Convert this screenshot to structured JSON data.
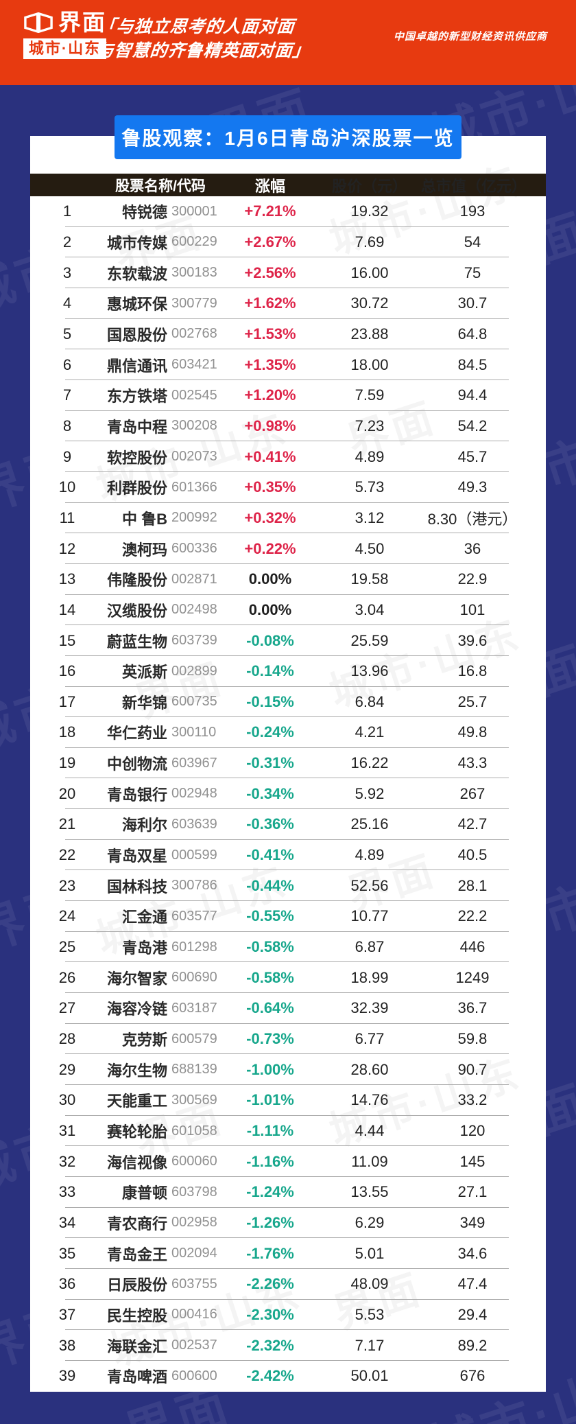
{
  "banner": {
    "logo_main": "界面",
    "logo_sub": "城市·山东",
    "slogan_line1": "「与独立思考的人面对面",
    "slogan_line2": "与智慧的齐鲁精英面对面」",
    "tagline": "中国卓越的新型财经资讯供应商",
    "bg_color": "#E73A10"
  },
  "title_badge": {
    "text": "鲁股观察：1月6日青岛沪深股票一览",
    "bg_color": "#1478F0"
  },
  "watermark": {
    "text_a": "界面",
    "text_b": "城市·山东"
  },
  "colors": {
    "page_bg": "#2A317E",
    "card_bg": "#FFFFFF",
    "table_header_bg": "#251C11",
    "positive": "#DE2449",
    "negative": "#17A78C",
    "zero": "#1E1E1E"
  },
  "chart_data": {
    "type": "table",
    "title": "鲁股观察：1月6日青岛沪深股票一览",
    "columns": [
      "股票名称/代码",
      "涨幅",
      "股价（元）",
      "总市值（亿元）"
    ],
    "rows": [
      {
        "rank": 1,
        "name": "特锐德",
        "code": "300001",
        "change": "+7.21%",
        "price": "19.32",
        "market_cap": "193"
      },
      {
        "rank": 2,
        "name": "城市传媒",
        "code": "600229",
        "change": "+2.67%",
        "price": "7.69",
        "market_cap": "54"
      },
      {
        "rank": 3,
        "name": "东软载波",
        "code": "300183",
        "change": "+2.56%",
        "price": "16.00",
        "market_cap": "75"
      },
      {
        "rank": 4,
        "name": "惠城环保",
        "code": "300779",
        "change": "+1.62%",
        "price": "30.72",
        "market_cap": "30.7"
      },
      {
        "rank": 5,
        "name": "国恩股份",
        "code": "002768",
        "change": "+1.53%",
        "price": "23.88",
        "market_cap": "64.8"
      },
      {
        "rank": 6,
        "name": "鼎信通讯",
        "code": "603421",
        "change": "+1.35%",
        "price": "18.00",
        "market_cap": "84.5"
      },
      {
        "rank": 7,
        "name": "东方铁塔",
        "code": "002545",
        "change": "+1.20%",
        "price": "7.59",
        "market_cap": "94.4"
      },
      {
        "rank": 8,
        "name": "青岛中程",
        "code": "300208",
        "change": "+0.98%",
        "price": "7.23",
        "market_cap": "54.2"
      },
      {
        "rank": 9,
        "name": "软控股份",
        "code": "002073",
        "change": "+0.41%",
        "price": "4.89",
        "market_cap": "45.7"
      },
      {
        "rank": 10,
        "name": "利群股份",
        "code": "601366",
        "change": "+0.35%",
        "price": "5.73",
        "market_cap": "49.3"
      },
      {
        "rank": 11,
        "name": "中 鲁B",
        "code": "200992",
        "change": "+0.32%",
        "price": "3.12",
        "market_cap": "8.30（港元）"
      },
      {
        "rank": 12,
        "name": "澳柯玛",
        "code": "600336",
        "change": "+0.22%",
        "price": "4.50",
        "market_cap": "36"
      },
      {
        "rank": 13,
        "name": "伟隆股份",
        "code": "002871",
        "change": "0.00%",
        "price": "19.58",
        "market_cap": "22.9"
      },
      {
        "rank": 14,
        "name": "汉缆股份",
        "code": "002498",
        "change": "0.00%",
        "price": "3.04",
        "market_cap": "101"
      },
      {
        "rank": 15,
        "name": "蔚蓝生物",
        "code": "603739",
        "change": "-0.08%",
        "price": "25.59",
        "market_cap": "39.6"
      },
      {
        "rank": 16,
        "name": "英派斯",
        "code": "002899",
        "change": "-0.14%",
        "price": "13.96",
        "market_cap": "16.8"
      },
      {
        "rank": 17,
        "name": "新华锦",
        "code": "600735",
        "change": "-0.15%",
        "price": "6.84",
        "market_cap": "25.7"
      },
      {
        "rank": 18,
        "name": "华仁药业",
        "code": "300110",
        "change": "-0.24%",
        "price": "4.21",
        "market_cap": "49.8"
      },
      {
        "rank": 19,
        "name": "中创物流",
        "code": "603967",
        "change": "-0.31%",
        "price": "16.22",
        "market_cap": "43.3"
      },
      {
        "rank": 20,
        "name": "青岛银行",
        "code": "002948",
        "change": "-0.34%",
        "price": "5.92",
        "market_cap": "267"
      },
      {
        "rank": 21,
        "name": "海利尔",
        "code": "603639",
        "change": "-0.36%",
        "price": "25.16",
        "market_cap": "42.7"
      },
      {
        "rank": 22,
        "name": "青岛双星",
        "code": "000599",
        "change": "-0.41%",
        "price": "4.89",
        "market_cap": "40.5"
      },
      {
        "rank": 23,
        "name": "国林科技",
        "code": "300786",
        "change": "-0.44%",
        "price": "52.56",
        "market_cap": "28.1"
      },
      {
        "rank": 24,
        "name": "汇金通",
        "code": "603577",
        "change": "-0.55%",
        "price": "10.77",
        "market_cap": "22.2"
      },
      {
        "rank": 25,
        "name": "青岛港",
        "code": "601298",
        "change": "-0.58%",
        "price": "6.87",
        "market_cap": "446"
      },
      {
        "rank": 26,
        "name": "海尔智家",
        "code": "600690",
        "change": "-0.58%",
        "price": "18.99",
        "market_cap": "1249"
      },
      {
        "rank": 27,
        "name": "海容冷链",
        "code": "603187",
        "change": "-0.64%",
        "price": "32.39",
        "market_cap": "36.7"
      },
      {
        "rank": 28,
        "name": "克劳斯",
        "code": "600579",
        "change": "-0.73%",
        "price": "6.77",
        "market_cap": "59.8"
      },
      {
        "rank": 29,
        "name": "海尔生物",
        "code": "688139",
        "change": "-1.00%",
        "price": "28.60",
        "market_cap": "90.7"
      },
      {
        "rank": 30,
        "name": "天能重工",
        "code": "300569",
        "change": "-1.01%",
        "price": "14.76",
        "market_cap": "33.2"
      },
      {
        "rank": 31,
        "name": "赛轮轮胎",
        "code": "601058",
        "change": "-1.11%",
        "price": "4.44",
        "market_cap": "120"
      },
      {
        "rank": 32,
        "name": "海信视像",
        "code": "600060",
        "change": "-1.16%",
        "price": "11.09",
        "market_cap": "145"
      },
      {
        "rank": 33,
        "name": "康普顿",
        "code": "603798",
        "change": "-1.24%",
        "price": "13.55",
        "market_cap": "27.1"
      },
      {
        "rank": 34,
        "name": "青农商行",
        "code": "002958",
        "change": "-1.26%",
        "price": "6.29",
        "market_cap": "349"
      },
      {
        "rank": 35,
        "name": "青岛金王",
        "code": "002094",
        "change": "-1.76%",
        "price": "5.01",
        "market_cap": "34.6"
      },
      {
        "rank": 36,
        "name": "日辰股份",
        "code": "603755",
        "change": "-2.26%",
        "price": "48.09",
        "market_cap": "47.4"
      },
      {
        "rank": 37,
        "name": "民生控股",
        "code": "000416",
        "change": "-2.30%",
        "price": "5.53",
        "market_cap": "29.4"
      },
      {
        "rank": 38,
        "name": "海联金汇",
        "code": "002537",
        "change": "-2.32%",
        "price": "7.17",
        "market_cap": "89.2"
      },
      {
        "rank": 39,
        "name": "青岛啤酒",
        "code": "600600",
        "change": "-2.42%",
        "price": "50.01",
        "market_cap": "676"
      }
    ]
  }
}
